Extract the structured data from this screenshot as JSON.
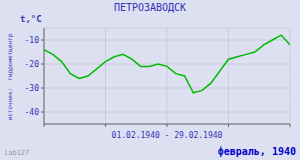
{
  "chart_data": {
    "type": "line",
    "title": "ПЕТРОЗАВОДСК",
    "ylabel": "t,°C",
    "xlabel": "01.02.1940 - 29.02.1940",
    "annotations": [
      "источник:  гидрометцентр",
      "lab127",
      "февраль, 1940"
    ],
    "x": [
      1,
      2,
      3,
      4,
      5,
      6,
      7,
      8,
      9,
      10,
      11,
      12,
      13,
      14,
      15,
      16,
      17,
      18,
      19,
      20,
      21,
      22,
      23,
      24,
      25,
      26,
      27,
      28,
      29
    ],
    "values": [
      -14,
      -16,
      -19,
      -24,
      -26,
      -25,
      -22,
      -19,
      -17,
      -16,
      -18,
      -21,
      -21,
      -20,
      -21,
      -24,
      -25,
      -32,
      -31,
      -28,
      -23,
      -18,
      -17,
      -16,
      -15,
      -12,
      -10,
      -8,
      -12
    ],
    "color": "#00bb00",
    "xlim": [
      1,
      29
    ],
    "xticks": [
      1,
      8,
      15,
      22,
      29
    ],
    "ylim": [
      -45,
      -5
    ],
    "yticks": [
      -40,
      -30,
      -20,
      -10
    ],
    "grid": true,
    "tick_labels": "y"
  }
}
